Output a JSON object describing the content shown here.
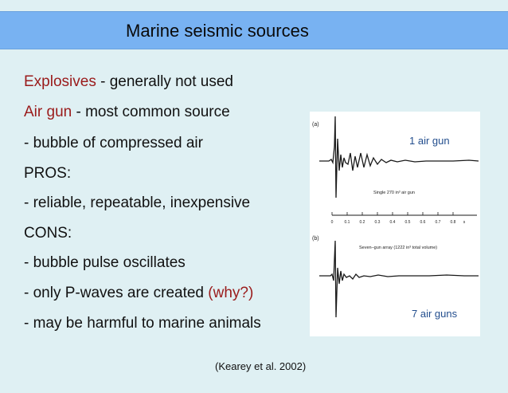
{
  "title": "Marine seismic sources",
  "bullets": {
    "explosives_term": "Explosives",
    "explosives_rest": " - generally not used",
    "airgun_term": "Air gun",
    "airgun_rest": " - most common source",
    "bubble": "- bubble of compressed air",
    "pros": "PROS:",
    "pros_detail": "- reliable, repeatable, inexpensive",
    "cons": "CONS:",
    "cons_detail1": "- bubble pulse oscillates",
    "pwaves_pre": "- only P-waves are created ",
    "pwaves_why": "(why?)",
    "harmful": "- may be harmful to marine animals"
  },
  "figure": {
    "panel_a": "(a)",
    "caption_a": "Single 270 in³ air gun",
    "axis_ticks": [
      "0",
      "0.1",
      "0.2",
      "0.3",
      "0.4",
      "0.5",
      "0.6",
      "0.7",
      "0.8",
      "s"
    ],
    "panel_b": "(b)",
    "caption_b": "Seven–gun array (1222 in³ total volume)",
    "label_single": "1 air gun",
    "label_array": "7 air guns"
  },
  "citation": "(Kearey et al. 2002)",
  "colors": {
    "background": "#dff0f3",
    "title_bar": "#78b2f2",
    "highlight_red": "#9a1b1b",
    "figure_label_blue": "#234e8e"
  }
}
